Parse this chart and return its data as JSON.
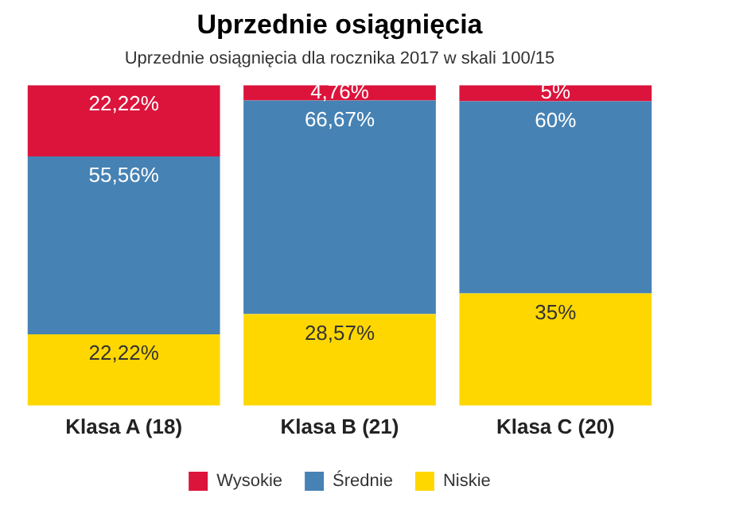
{
  "chart_data": {
    "type": "bar",
    "title": "Uprzednie osiągnięcia",
    "subtitle": "Uprzednie osiągnięcia dla rocznika 2017 w skali 100/15",
    "categories": [
      "Klasa A (18)",
      "Klasa B (21)",
      "Klasa C (20)"
    ],
    "stacked": true,
    "grid": false,
    "legend": "bottom",
    "series": [
      {
        "name": "Niskie",
        "color": "#ffd700",
        "values": [
          22.22,
          28.57,
          35
        ],
        "value_labels": [
          "22,22%",
          "28,57%",
          "35%"
        ]
      },
      {
        "name": "Średnie",
        "color": "#4682b4",
        "values": [
          55.56,
          66.67,
          60
        ],
        "value_labels": [
          "55,56%",
          "66,67%",
          "60%"
        ]
      },
      {
        "name": "Wysokie",
        "color": "#dc143c",
        "values": [
          22.22,
          4.76,
          5
        ],
        "value_labels": [
          "22,22%",
          "4,76%",
          "5%"
        ]
      }
    ]
  }
}
